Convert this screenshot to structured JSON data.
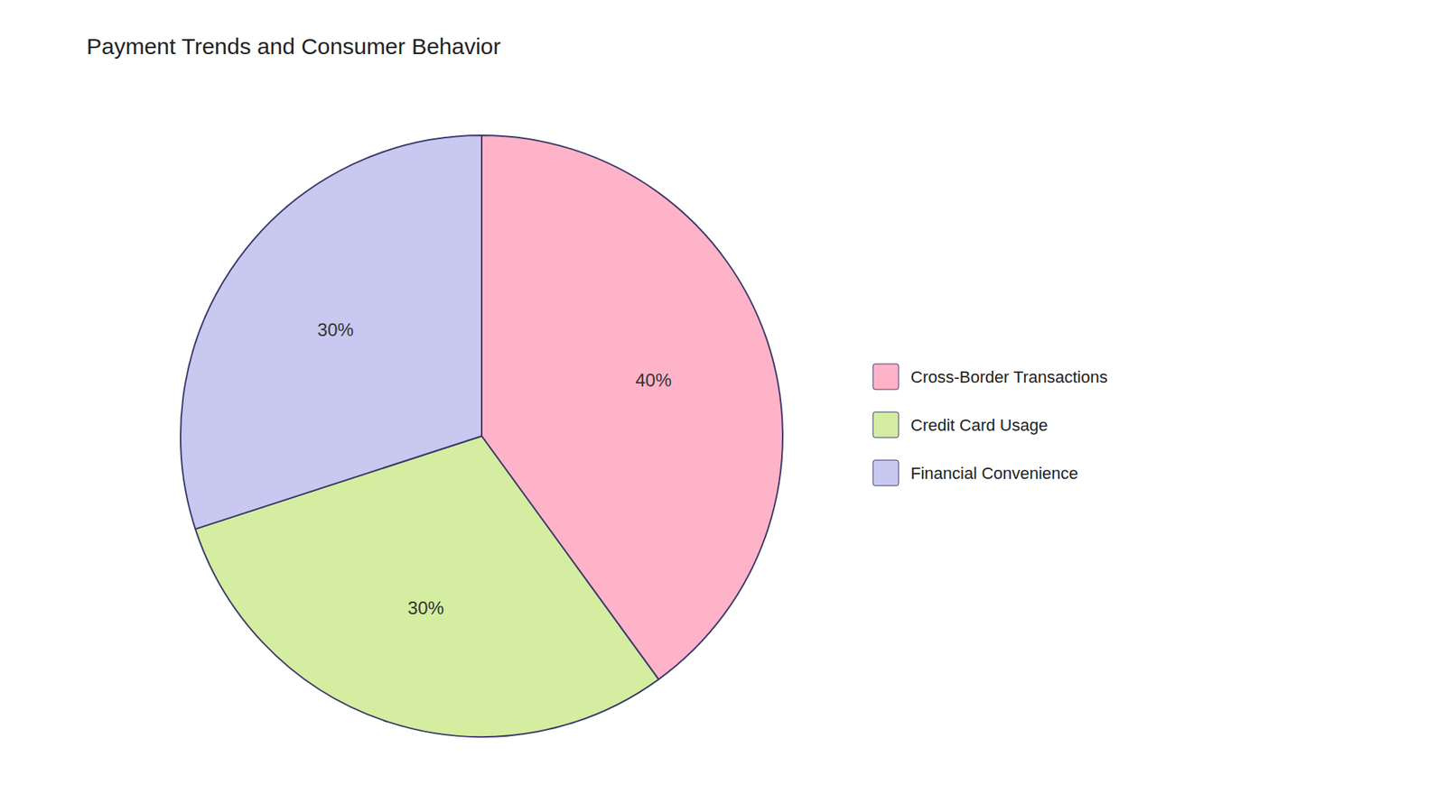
{
  "chart_data": {
    "type": "pie",
    "title": "Payment Trends and Consumer Behavior",
    "categories": [
      "Cross-Border Transactions",
      "Credit Card Usage",
      "Financial Convenience"
    ],
    "values": [
      40,
      30,
      30
    ],
    "value_labels": [
      "40%",
      "30%",
      "30%"
    ],
    "colors": [
      "#FFB3C8",
      "#D4EDA0",
      "#C8C8F0"
    ],
    "data_labels": true,
    "legend": "right"
  }
}
